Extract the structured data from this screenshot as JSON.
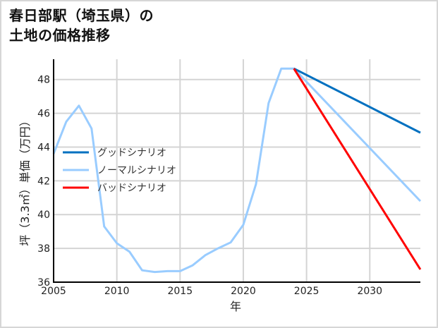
{
  "title": {
    "line1": "春日部駅（埼玉県）の",
    "line2": "土地の価格推移"
  },
  "colors": {
    "good": "#0070c0",
    "normal": "#99ccff",
    "bad": "#ff0000",
    "grid": "#d4d4d4",
    "axis": "#000000",
    "frame": "#d6d6d6"
  },
  "chart_data": {
    "type": "line",
    "title": "春日部駅（埼玉県）の土地の価格推移",
    "xlabel": "年",
    "ylabel": "坪（3.3㎡）単価（万円）",
    "xlim": [
      2005,
      2034
    ],
    "ylim": [
      36,
      49.2
    ],
    "xticks": [
      2005,
      2010,
      2015,
      2020,
      2025,
      2030
    ],
    "yticks": [
      36,
      38,
      40,
      42,
      44,
      46,
      48
    ],
    "grid": true,
    "legend_position": "upper-left-middle",
    "series": [
      {
        "name": "グッドシナリオ",
        "color": "#0070c0",
        "x": [
          2024,
          2034
        ],
        "values": [
          48.65,
          44.85
        ]
      },
      {
        "name": "ノーマルシナリオ",
        "color": "#99ccff",
        "x": [
          2005,
          2006,
          2007,
          2008,
          2009,
          2010,
          2011,
          2012,
          2013,
          2014,
          2015,
          2016,
          2017,
          2018,
          2019,
          2020,
          2021,
          2022,
          2023,
          2024,
          2034
        ],
        "values": [
          43.6,
          45.5,
          46.45,
          45.1,
          39.3,
          38.3,
          37.8,
          36.7,
          36.6,
          36.65,
          36.65,
          37.0,
          37.6,
          38.0,
          38.35,
          39.4,
          41.8,
          46.6,
          48.65,
          48.65,
          40.8
        ]
      },
      {
        "name": "バッドシナリオ",
        "color": "#ff0000",
        "x": [
          2024,
          2034
        ],
        "values": [
          48.65,
          36.75
        ]
      }
    ]
  },
  "legend": [
    {
      "label": "グッドシナリオ",
      "color": "#0070c0"
    },
    {
      "label": "ノーマルシナリオ",
      "color": "#99ccff"
    },
    {
      "label": "バッドシナリオ",
      "color": "#ff0000"
    }
  ]
}
